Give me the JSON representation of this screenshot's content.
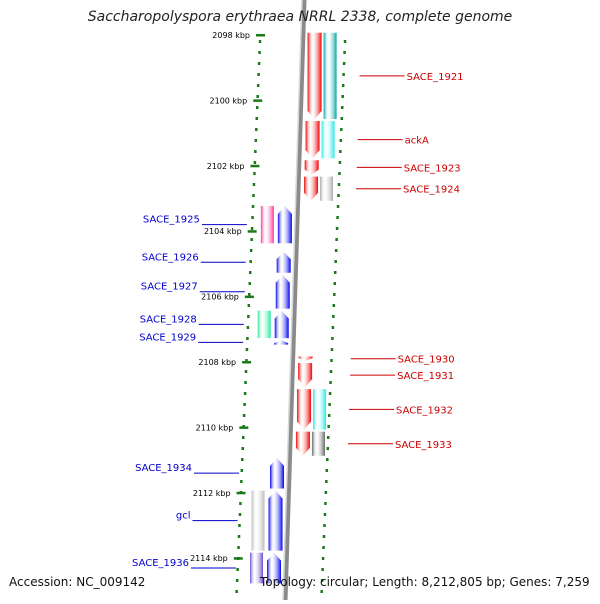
{
  "title": "Saccharopolyspora erythraea NRRL 2338, complete genome",
  "accession": "Accession: NC_009142",
  "summary": "Topology: circular; Length: 8,212,805 bp; Genes: 7,259",
  "colors": {
    "forward": "#ee0000",
    "reverse": "#0000ee",
    "label_forward": "#cc0000",
    "label_reverse": "#0000cc",
    "tick": "#1a7a1a",
    "backbone": "#8a8a8a"
  },
  "ticks": [
    {
      "kbp": 2098,
      "label": "2098 kbp"
    },
    {
      "kbp": 2100,
      "label": "2100 kbp"
    },
    {
      "kbp": 2102,
      "label": "2102 kbp"
    },
    {
      "kbp": 2104,
      "label": "2104 kbp"
    },
    {
      "kbp": 2106,
      "label": "2106 kbp"
    },
    {
      "kbp": 2108,
      "label": "2108 kbp"
    },
    {
      "kbp": 2110,
      "label": "2110 kbp"
    },
    {
      "kbp": 2112,
      "label": "2112 kbp"
    },
    {
      "kbp": 2114,
      "label": "2114 kbp"
    }
  ],
  "genes_forward": [
    {
      "label": "SACE_1921",
      "start_kbp": 2097.9,
      "end_kbp": 2100.6,
      "cog_color": "#00a3a3"
    },
    {
      "label": "ackA",
      "start_kbp": 2100.6,
      "end_kbp": 2101.8,
      "cog_color": "#22e8e8"
    },
    {
      "label": "SACE_1923",
      "start_kbp": 2101.8,
      "end_kbp": 2102.3,
      "cog_color": ""
    },
    {
      "label": "SACE_1924",
      "start_kbp": 2102.3,
      "end_kbp": 2103.1,
      "cog_color": "#aaaaaa"
    },
    {
      "label": "SACE_1930",
      "start_kbp": 2107.8,
      "end_kbp": 2108.0,
      "cog_color": ""
    },
    {
      "label": "SACE_1931",
      "start_kbp": 2108.0,
      "end_kbp": 2108.8,
      "cog_color": ""
    },
    {
      "label": "SACE_1932",
      "start_kbp": 2108.8,
      "end_kbp": 2110.1,
      "cog_color": "#22e8e8"
    },
    {
      "label": "SACE_1933",
      "start_kbp": 2110.1,
      "end_kbp": 2110.9,
      "cog_color": "#666666"
    }
  ],
  "genes_reverse": [
    {
      "label": "SACE_1925",
      "start_kbp": 2103.2,
      "end_kbp": 2104.4,
      "cog_color": "#ff3399"
    },
    {
      "label": "SACE_1926",
      "start_kbp": 2104.6,
      "end_kbp": 2105.3,
      "cog_color": ""
    },
    {
      "label": "SACE_1927",
      "start_kbp": 2105.3,
      "end_kbp": 2106.4,
      "cog_color": ""
    },
    {
      "label": "SACE_1928",
      "start_kbp": 2106.4,
      "end_kbp": 2107.3,
      "cog_color": "#22e89a"
    },
    {
      "label": "SACE_1929",
      "start_kbp": 2107.3,
      "end_kbp": 2107.5,
      "cog_color": ""
    },
    {
      "label": "SACE_1934",
      "start_kbp": 2110.9,
      "end_kbp": 2111.9,
      "cog_color": ""
    },
    {
      "label": "gcl",
      "start_kbp": 2111.9,
      "end_kbp": 2113.8,
      "cog_color": "#bbbbbb"
    },
    {
      "label": "SACE_1936",
      "start_kbp": 2113.8,
      "end_kbp": 2114.8,
      "cog_color": "#6a4ccc"
    }
  ]
}
